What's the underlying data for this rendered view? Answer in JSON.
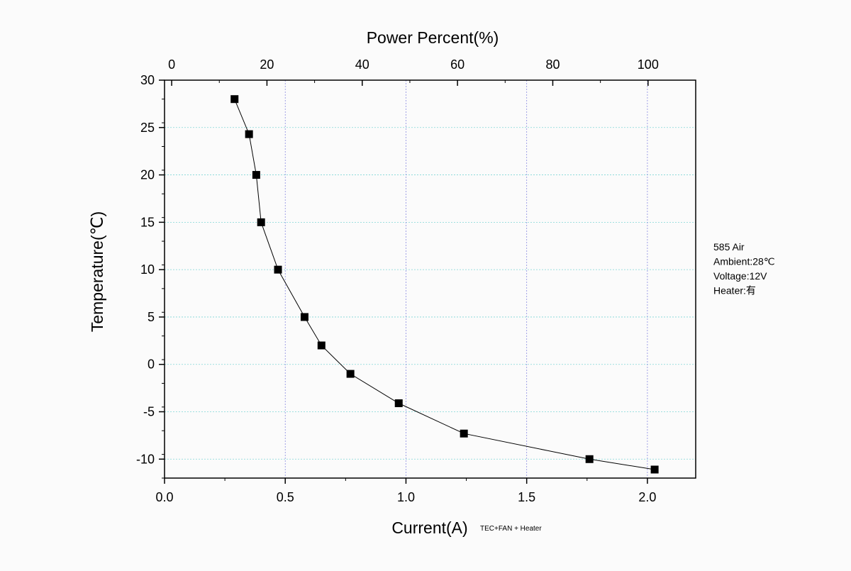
{
  "chart_data": {
    "type": "line",
    "xlabel": "Current(A)",
    "xlabel_note": "TEC+FAN + Heater",
    "ylabel": "Temperature(℃)",
    "top_xlabel": "Power Percent(%)",
    "xlim": [
      0.0,
      2.2
    ],
    "ylim": [
      -12,
      30
    ],
    "x_ticks": [
      0.0,
      0.5,
      1.0,
      1.5,
      2.0
    ],
    "x_tick_labels": [
      "0.0",
      "0.5",
      "1.0",
      "1.5",
      "2.0"
    ],
    "y_ticks": [
      -10,
      -5,
      0,
      5,
      10,
      15,
      20,
      25,
      30
    ],
    "y_tick_labels": [
      "-10",
      "-5",
      "0",
      "5",
      "10",
      "15",
      "20",
      "25",
      "30"
    ],
    "top_ticks": [
      0,
      20,
      40,
      60,
      80,
      100
    ],
    "top_tick_labels": [
      "0",
      "20",
      "40",
      "60",
      "80",
      "100"
    ],
    "top_xlim": [
      -1.5,
      110
    ],
    "grid": true,
    "series": [
      {
        "x": [
          0.29,
          0.35,
          0.38,
          0.4,
          0.47,
          0.58,
          0.65,
          0.77,
          0.97,
          1.24,
          1.76,
          2.03
        ],
        "y": [
          28,
          24.3,
          20,
          15,
          10,
          5,
          2,
          -1,
          -4.1,
          -7.3,
          -10,
          -11.1
        ],
        "marker": "square",
        "color": "#000000"
      }
    ],
    "notes": [
      "585 Air",
      "Ambient:28℃",
      "Voltage:12V",
      "Heater:有"
    ]
  }
}
